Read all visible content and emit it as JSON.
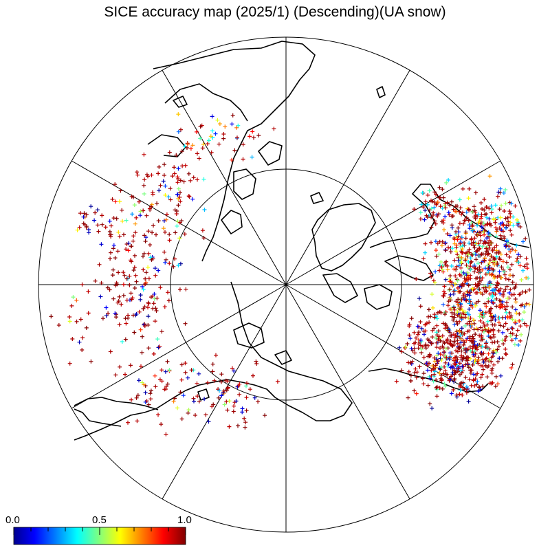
{
  "title": "SICE accuracy map (2025/1) (Descending)(UA snow)",
  "projection": "north polar stereographic",
  "graticule": {
    "meridian_spacing_deg": 30,
    "latitude_circles": [
      "equator",
      "mid-latitude"
    ]
  },
  "colorbar": {
    "min_label": "0.0",
    "mid_label": "0.5",
    "max_label": "1.0",
    "range": [
      0.0,
      1.0
    ],
    "colormap": "jet",
    "colors": [
      "#00008f",
      "#0000ff",
      "#00ffff",
      "#ffff00",
      "#ff0000",
      "#800000"
    ]
  },
  "marker_symbol": "+",
  "marker_meaning": "per-site accuracy value colored by colorbar"
}
